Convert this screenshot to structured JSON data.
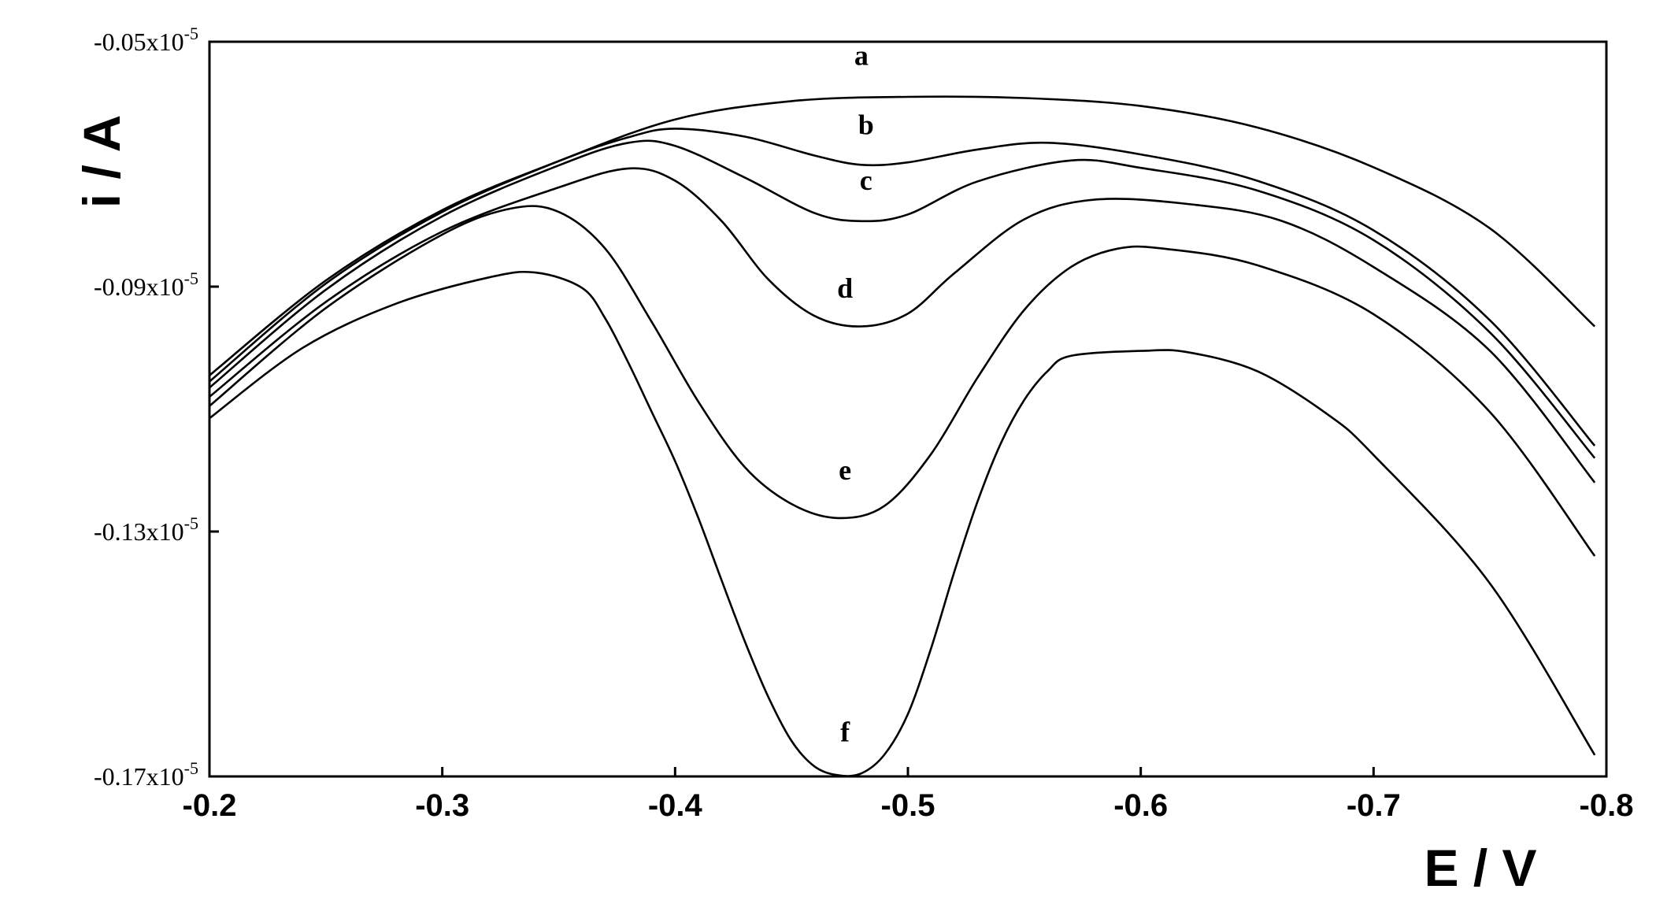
{
  "chart_data": {
    "type": "line",
    "xlabel": "E / V",
    "ylabel": "i / A",
    "xlim": [
      -0.2,
      -0.8
    ],
    "ylim": [
      -0.17,
      -0.05
    ],
    "x_ticks": [
      -0.2,
      -0.3,
      -0.4,
      -0.5,
      -0.6,
      -0.7,
      -0.8
    ],
    "x_tick_labels": [
      "-0.2",
      "-0.3",
      "-0.4",
      "-0.5",
      "-0.6",
      "-0.7",
      "-0.8"
    ],
    "y_ticks": [
      -0.05,
      -0.09,
      -0.13,
      -0.17
    ],
    "y_tick_mantissas": [
      "-0.05x10",
      "-0.09x10",
      "-0.13x10",
      "-0.17x10"
    ],
    "y_tick_exponent": "-5",
    "grid": false,
    "legend": "none",
    "series": [
      {
        "name": "a",
        "x": [
          -0.2,
          -0.25,
          -0.3,
          -0.35,
          -0.4,
          -0.45,
          -0.5,
          -0.55,
          -0.6,
          -0.65,
          -0.7,
          -0.75,
          -0.795
        ],
        "y": [
          -0.1045,
          -0.089,
          -0.0775,
          -0.0695,
          -0.0627,
          -0.0597,
          -0.059,
          -0.0592,
          -0.0605,
          -0.064,
          -0.0705,
          -0.0805,
          -0.0965
        ]
      },
      {
        "name": "b",
        "x": [
          -0.2,
          -0.25,
          -0.3,
          -0.35,
          -0.38,
          -0.4,
          -0.43,
          -0.46,
          -0.48,
          -0.5,
          -0.53,
          -0.56,
          -0.6,
          -0.65,
          -0.7,
          -0.75,
          -0.795
        ],
        "y": [
          -0.1055,
          -0.0895,
          -0.0778,
          -0.0695,
          -0.0656,
          -0.0642,
          -0.0655,
          -0.0686,
          -0.0701,
          -0.0697,
          -0.0676,
          -0.0665,
          -0.0684,
          -0.0727,
          -0.0808,
          -0.0955,
          -0.116
        ]
      },
      {
        "name": "c",
        "x": [
          -0.2,
          -0.25,
          -0.3,
          -0.35,
          -0.38,
          -0.4,
          -0.43,
          -0.46,
          -0.48,
          -0.5,
          -0.53,
          -0.57,
          -0.6,
          -0.65,
          -0.7,
          -0.75,
          -0.795
        ],
        "y": [
          -0.1065,
          -0.0905,
          -0.0785,
          -0.0702,
          -0.0665,
          -0.067,
          -0.0722,
          -0.078,
          -0.0793,
          -0.0782,
          -0.0728,
          -0.0694,
          -0.0706,
          -0.0743,
          -0.0824,
          -0.0975,
          -0.118
        ]
      },
      {
        "name": "d",
        "x": [
          -0.2,
          -0.25,
          -0.3,
          -0.35,
          -0.38,
          -0.4,
          -0.42,
          -0.44,
          -0.46,
          -0.48,
          -0.5,
          -0.52,
          -0.55,
          -0.58,
          -0.62,
          -0.66,
          -0.7,
          -0.75,
          -0.795
        ],
        "y": [
          -0.108,
          -0.0925,
          -0.081,
          -0.0738,
          -0.0707,
          -0.0727,
          -0.0793,
          -0.0888,
          -0.0948,
          -0.0965,
          -0.0944,
          -0.0878,
          -0.079,
          -0.0758,
          -0.0765,
          -0.0792,
          -0.0868,
          -0.1005,
          -0.122
        ]
      },
      {
        "name": "e",
        "x": [
          -0.2,
          -0.25,
          -0.3,
          -0.33,
          -0.35,
          -0.37,
          -0.39,
          -0.41,
          -0.43,
          -0.45,
          -0.47,
          -0.49,
          -0.51,
          -0.53,
          -0.55,
          -0.57,
          -0.59,
          -0.61,
          -0.65,
          -0.7,
          -0.75,
          -0.795
        ],
        "y": [
          -0.1095,
          -0.0935,
          -0.0815,
          -0.0772,
          -0.0778,
          -0.0838,
          -0.0958,
          -0.1088,
          -0.1195,
          -0.1255,
          -0.1278,
          -0.1258,
          -0.1173,
          -0.1048,
          -0.0938,
          -0.0868,
          -0.0838,
          -0.0838,
          -0.0865,
          -0.0945,
          -0.1105,
          -0.134
        ]
      },
      {
        "name": "f",
        "x": [
          -0.2,
          -0.24,
          -0.28,
          -0.32,
          -0.34,
          -0.36,
          -0.37,
          -0.38,
          -0.39,
          -0.4,
          -0.41,
          -0.42,
          -0.43,
          -0.44,
          -0.45,
          -0.46,
          -0.47,
          -0.48,
          -0.49,
          -0.5,
          -0.51,
          -0.52,
          -0.53,
          -0.54,
          -0.55,
          -0.56,
          -0.57,
          -0.6,
          -0.62,
          -0.65,
          -0.68,
          -0.7,
          -0.75,
          -0.795
        ],
        "y": [
          -0.1115,
          -0.1,
          -0.0928,
          -0.0885,
          -0.0877,
          -0.0902,
          -0.0952,
          -0.1025,
          -0.1105,
          -0.1185,
          -0.1278,
          -0.138,
          -0.148,
          -0.157,
          -0.1642,
          -0.1684,
          -0.1698,
          -0.1695,
          -0.1664,
          -0.1598,
          -0.149,
          -0.1365,
          -0.125,
          -0.1155,
          -0.1085,
          -0.1038,
          -0.1013,
          -0.1005,
          -0.1007,
          -0.1038,
          -0.1108,
          -0.1175,
          -0.1385,
          -0.1665
        ]
      }
    ],
    "series_label_positions": [
      {
        "name": "a",
        "x": -0.48,
        "y": -0.0538
      },
      {
        "name": "b",
        "x": -0.482,
        "y": -0.0651
      },
      {
        "name": "c",
        "x": -0.482,
        "y": -0.0742
      },
      {
        "name": "d",
        "x": -0.473,
        "y": -0.0918
      },
      {
        "name": "e",
        "x": -0.473,
        "y": -0.1215
      },
      {
        "name": "f",
        "x": -0.473,
        "y": -0.1643
      }
    ]
  }
}
